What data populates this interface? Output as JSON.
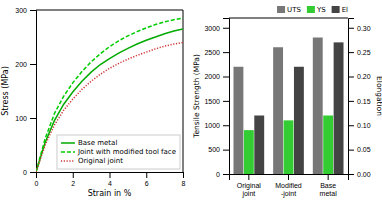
{
  "chart_data": [
    {
      "type": "line",
      "x": [
        0,
        0.5,
        1,
        1.5,
        2,
        2.5,
        3,
        3.5,
        4,
        4.5,
        5,
        5.5,
        6,
        6.5,
        7,
        7.5,
        8
      ],
      "series": [
        {
          "name": "Base metal",
          "color": "#00aa00",
          "line_style": "solid",
          "values": [
            0,
            55,
            95,
            125,
            148,
            168,
            185,
            199,
            210,
            220,
            229,
            237,
            244,
            250,
            256,
            261,
            265
          ]
        },
        {
          "name": "Joint with modified tool face",
          "color": "#00cc00",
          "line_style": "dashed",
          "values": [
            0,
            62,
            108,
            140,
            165,
            186,
            204,
            219,
            232,
            243,
            252,
            260,
            267,
            273,
            278,
            282,
            285
          ]
        },
        {
          "name": "Original joint",
          "color": "#cc3333",
          "line_style": "dotted",
          "values": [
            0,
            50,
            87,
            114,
            135,
            153,
            168,
            181,
            192,
            201,
            209,
            216,
            222,
            228,
            233,
            237,
            240
          ]
        }
      ],
      "xlabel": "Strain in %",
      "ylabel": "Stress (MPa)",
      "xlim": [
        0,
        8
      ],
      "ylim": [
        0,
        300
      ],
      "xticks": [
        0,
        2,
        4,
        6,
        8
      ],
      "yticks": [
        0,
        100,
        200,
        300
      ],
      "grid": false,
      "legend": "lower right"
    },
    {
      "type": "bar",
      "categories": [
        "Original\njoint",
        "Modified\n-joint",
        "Base\nmetal"
      ],
      "series": [
        {
          "name": "UTS",
          "color": "#777777",
          "values": [
            2200,
            2600,
            2800
          ]
        },
        {
          "name": "YS",
          "color": "#33cc33",
          "values": [
            900,
            1100,
            1200
          ]
        },
        {
          "name": "El",
          "color": "#444444",
          "axis": "y2",
          "values": [
            0.12,
            0.22,
            0.27
          ]
        }
      ],
      "ylabel": "Tensile Strength (MPa)",
      "y2label": "Elongation",
      "ylim": [
        0,
        3200
      ],
      "yticks": [
        0,
        500,
        1000,
        1500,
        2000,
        2500,
        3000
      ],
      "y2lim": [
        0,
        0.32
      ],
      "y2ticks": [
        {
          "value": 0,
          "label": "0.00"
        },
        {
          "value": 0.05,
          "label": "0.05"
        },
        {
          "value": 0.1,
          "label": "0.10"
        },
        {
          "value": 0.15,
          "label": "0.15"
        },
        {
          "value": 0.2,
          "label": "0.20"
        },
        {
          "value": 0.25,
          "label": "0.25"
        },
        {
          "value": 0.3,
          "label": "0.30"
        }
      ],
      "grid": false,
      "legend": "upper right"
    }
  ]
}
